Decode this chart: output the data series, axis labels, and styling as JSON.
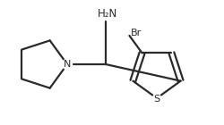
{
  "background_color": "#ffffff",
  "line_color": "#2a2a2a",
  "line_width": 1.6,
  "font_size_label": 8.0,
  "atoms": {
    "NH2_label": "H₂N",
    "N_label": "N",
    "S_label": "S",
    "Br_label": "Br"
  },
  "figsize": [
    2.51,
    1.4
  ],
  "dpi": 100,
  "xlim": [
    0,
    251
  ],
  "ylim": [
    0,
    140
  ]
}
